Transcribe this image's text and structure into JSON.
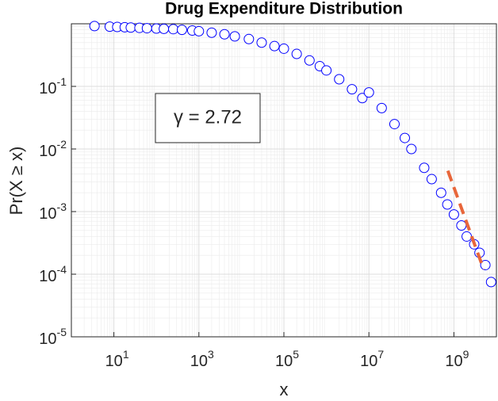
{
  "chart_data": {
    "type": "scatter",
    "title": "Drug Expenditure Distribution",
    "x_label": "x",
    "y_label": "Pr(X ≥ x)",
    "log_x": true,
    "log_y": true,
    "grid": true,
    "minor_grid": true,
    "xlim": [
      1,
      10000000000
    ],
    "ylim": [
      1e-05,
      1
    ],
    "xticks": [
      {
        "value": 10,
        "label": "10^1"
      },
      {
        "value": 1000,
        "label": "10^3"
      },
      {
        "value": 100000,
        "label": "10^5"
      },
      {
        "value": 10000000,
        "label": "10^7"
      },
      {
        "value": 1000000000,
        "label": "10^9"
      }
    ],
    "yticks": [
      {
        "value": 1e-05,
        "label": "10^-5"
      },
      {
        "value": 0.0001,
        "label": "10^-4"
      },
      {
        "value": 0.001,
        "label": "10^-3"
      },
      {
        "value": 0.01,
        "label": "10^-2"
      },
      {
        "value": 0.1,
        "label": "10^-1"
      }
    ],
    "series": [
      {
        "color": "#0000ff",
        "x": [
          3.5,
          8,
          12,
          18,
          25,
          40,
          60,
          100,
          150,
          250,
          400,
          700,
          1000,
          2000,
          4000,
          7000,
          15000,
          30000,
          60000,
          100000,
          200000,
          400000,
          700000,
          1000000,
          2000000,
          4000000,
          7000000,
          10000000,
          20000000,
          40000000,
          70000000,
          100000000,
          200000000,
          300000000,
          500000000,
          700000000,
          1000000000,
          1500000000,
          2000000000,
          3000000000,
          4000000000,
          5500000000,
          7500000000
        ],
        "values": [
          0.92,
          0.9,
          0.89,
          0.88,
          0.87,
          0.86,
          0.85,
          0.84,
          0.83,
          0.82,
          0.8,
          0.78,
          0.76,
          0.72,
          0.68,
          0.63,
          0.57,
          0.5,
          0.44,
          0.4,
          0.33,
          0.26,
          0.21,
          0.18,
          0.13,
          0.09,
          0.065,
          0.08,
          0.045,
          0.025,
          0.015,
          0.01,
          0.005,
          0.0033,
          0.002,
          0.0013,
          0.0009,
          0.0006,
          0.0004,
          0.0003,
          0.00022,
          0.00014,
          7.5e-05
        ]
      },
      {
        "type": "line",
        "color": "#e8663a",
        "x": [
          720000000,
          5000000000
        ],
        "values": [
          0.0045,
          0.00012
        ]
      }
    ],
    "annotation": "γ = 2.72"
  }
}
